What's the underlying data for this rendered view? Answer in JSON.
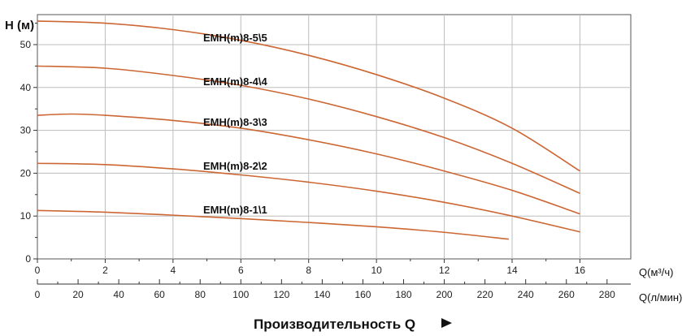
{
  "chart_data": {
    "type": "line",
    "ylabel": "H (м)",
    "x_unit_label": "Q(м³/ч)",
    "x2_unit_label": "Q(л/мин)",
    "xtitle": "Производительность Q",
    "xlim": [
      0,
      17.5
    ],
    "ylim": [
      0,
      57
    ],
    "x_ticks": [
      0,
      2,
      4,
      6,
      8,
      10,
      12,
      14,
      16
    ],
    "y_ticks": [
      0,
      10,
      20,
      30,
      40,
      50
    ],
    "x2_ticks": [
      0,
      20,
      40,
      60,
      80,
      100,
      120,
      140,
      160,
      180,
      200,
      220,
      240,
      260,
      280
    ],
    "grid": true,
    "series_color": "#cc6633",
    "series": [
      {
        "name": "EMH(m)8-5\\5",
        "x": [
          0,
          2,
          4,
          6,
          8,
          10,
          12,
          14,
          16
        ],
        "values": [
          55.5,
          55.0,
          53.5,
          51.0,
          47.5,
          43.0,
          37.5,
          30.5,
          20.5
        ]
      },
      {
        "name": "EMH(m)8-4\\4",
        "x": [
          0,
          2,
          4,
          6,
          8,
          10,
          12,
          14,
          16
        ],
        "values": [
          45.0,
          44.5,
          42.8,
          40.5,
          37.3,
          33.2,
          28.3,
          22.3,
          15.3
        ]
      },
      {
        "name": "EMH(m)8-3\\3",
        "x": [
          0,
          1,
          2,
          4,
          6,
          8,
          10,
          12,
          14,
          16
        ],
        "values": [
          33.5,
          33.8,
          33.5,
          32.3,
          30.5,
          27.8,
          24.5,
          20.5,
          16.0,
          10.5
        ]
      },
      {
        "name": "EMH(m)8-2\\2",
        "x": [
          0,
          2,
          4,
          6,
          8,
          10,
          12,
          14,
          16
        ],
        "values": [
          22.3,
          22.0,
          21.0,
          19.6,
          17.9,
          15.8,
          13.2,
          10.0,
          6.3
        ]
      },
      {
        "name": "EMH(m)8-1\\1",
        "x": [
          0,
          2,
          4,
          6,
          8,
          10,
          12,
          13.9
        ],
        "values": [
          11.3,
          10.9,
          10.2,
          9.4,
          8.5,
          7.5,
          6.2,
          4.6
        ]
      }
    ]
  }
}
